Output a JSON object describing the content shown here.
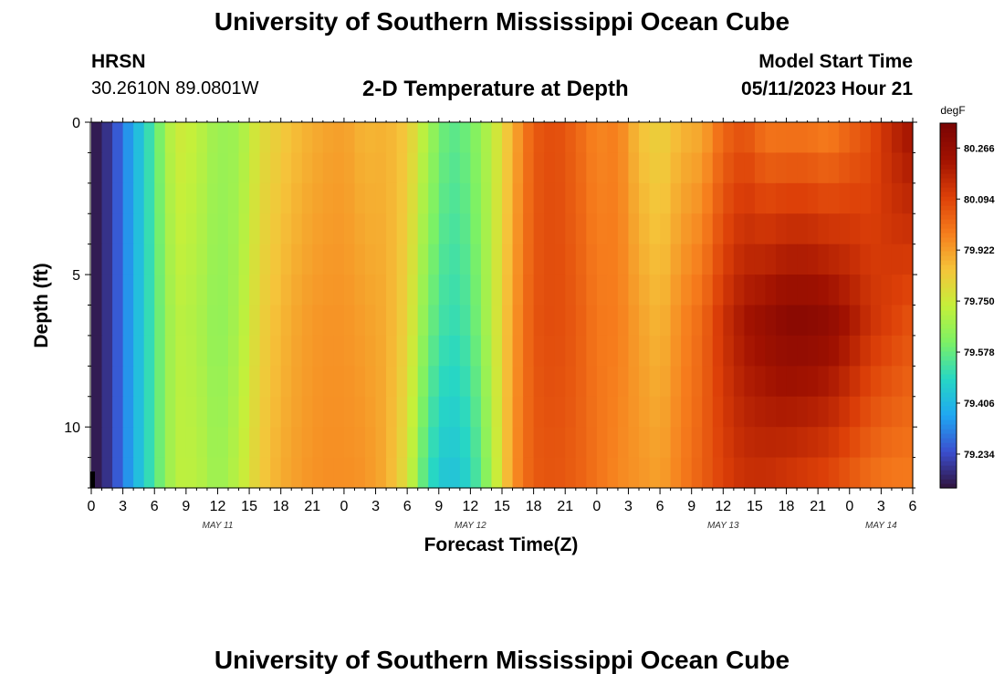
{
  "header": {
    "title": "University of Southern Mississippi Ocean Cube",
    "station": "HRSN",
    "coords": "30.2610N  89.0801W",
    "subtitle": "2-D Temperature at Depth",
    "model_start_label": "Model Start Time",
    "model_start_value": "05/11/2023 Hour 21"
  },
  "footer": {
    "title": "University of Southern Mississippi Ocean Cube"
  },
  "colors": {
    "colormap": [
      "#30123b",
      "#3b4ecf",
      "#1fa8f2",
      "#27d7c4",
      "#7cf165",
      "#c5f03a",
      "#f5c43a",
      "#f67c1c",
      "#dc3f08",
      "#a11201",
      "#7a0403"
    ]
  },
  "chart_data": {
    "type": "heatmap",
    "title": "2-D Temperature at Depth",
    "xlabel": "Forecast Time(Z)",
    "ylabel": "Depth (ft)",
    "colorbar_unit": "degF",
    "clim": [
      79.12,
      80.35
    ],
    "colorbar_ticks": [
      "80.266",
      "80.094",
      "79.922",
      "79.750",
      "79.578",
      "79.406",
      "79.234"
    ],
    "colorbar_values": [
      80.266,
      80.094,
      79.922,
      79.75,
      79.578,
      79.406,
      79.234
    ],
    "x_range_hours": [
      0,
      78
    ],
    "x_ticks": [
      "0",
      "3",
      "6",
      "9",
      "12",
      "15",
      "18",
      "21",
      "0",
      "3",
      "6",
      "9",
      "12",
      "15",
      "18",
      "21",
      "0",
      "3",
      "6",
      "9",
      "12",
      "15",
      "18",
      "21",
      "0",
      "3",
      "6"
    ],
    "date_labels": [
      {
        "label": "MAY 11",
        "hour": 12
      },
      {
        "label": "MAY 12",
        "hour": 36
      },
      {
        "label": "MAY 13",
        "hour": 60
      },
      {
        "label": "MAY 14",
        "hour": 75
      }
    ],
    "y_range_ft": [
      0,
      12
    ],
    "y_ticks": [
      "0",
      "5",
      "10"
    ],
    "y_tick_values": [
      0,
      5,
      10
    ],
    "profile_hours": [
      0,
      1,
      2,
      4,
      6,
      8,
      10,
      12,
      14,
      16,
      18,
      20,
      22,
      24,
      26,
      28,
      30,
      32,
      34,
      36,
      38,
      40,
      42,
      44,
      46,
      48,
      50,
      52,
      54,
      56,
      58,
      60,
      62,
      64,
      66,
      68,
      70,
      72,
      74,
      76,
      78
    ],
    "profile_surface": [
      79.13,
      79.15,
      79.22,
      79.38,
      79.56,
      79.76,
      79.73,
      79.66,
      79.67,
      79.79,
      79.84,
      79.88,
      79.91,
      79.92,
      79.88,
      79.89,
      79.85,
      79.68,
      79.56,
      79.6,
      79.72,
      79.89,
      80.05,
      80.08,
      80.03,
      79.96,
      79.98,
      79.86,
      79.82,
      79.88,
      79.9,
      80.02,
      80.06,
      79.98,
      79.98,
      79.98,
      79.96,
      80.02,
      80.07,
      80.17,
      80.24
    ],
    "profile_mid": [
      79.13,
      79.15,
      79.22,
      79.38,
      79.55,
      79.72,
      79.7,
      79.64,
      79.69,
      79.82,
      79.88,
      79.92,
      79.94,
      79.94,
      79.92,
      79.9,
      79.82,
      79.6,
      79.5,
      79.55,
      79.72,
      79.92,
      80.06,
      80.08,
      80.05,
      79.99,
      79.98,
      79.92,
      79.88,
      79.96,
      80.02,
      80.14,
      80.22,
      80.26,
      80.3,
      80.3,
      80.28,
      80.22,
      80.14,
      80.1,
      80.06
    ],
    "profile_bottom": [
      79.13,
      79.15,
      79.22,
      79.38,
      79.55,
      79.72,
      79.72,
      79.66,
      79.72,
      79.84,
      79.9,
      79.93,
      79.95,
      79.95,
      79.94,
      79.9,
      79.78,
      79.5,
      79.42,
      79.48,
      79.68,
      79.94,
      80.05,
      80.06,
      80.04,
      80.0,
      79.96,
      79.94,
      79.92,
      79.98,
      80.04,
      80.1,
      80.14,
      80.14,
      80.12,
      80.1,
      80.08,
      80.04,
      80.0,
      79.98,
      79.98
    ]
  }
}
